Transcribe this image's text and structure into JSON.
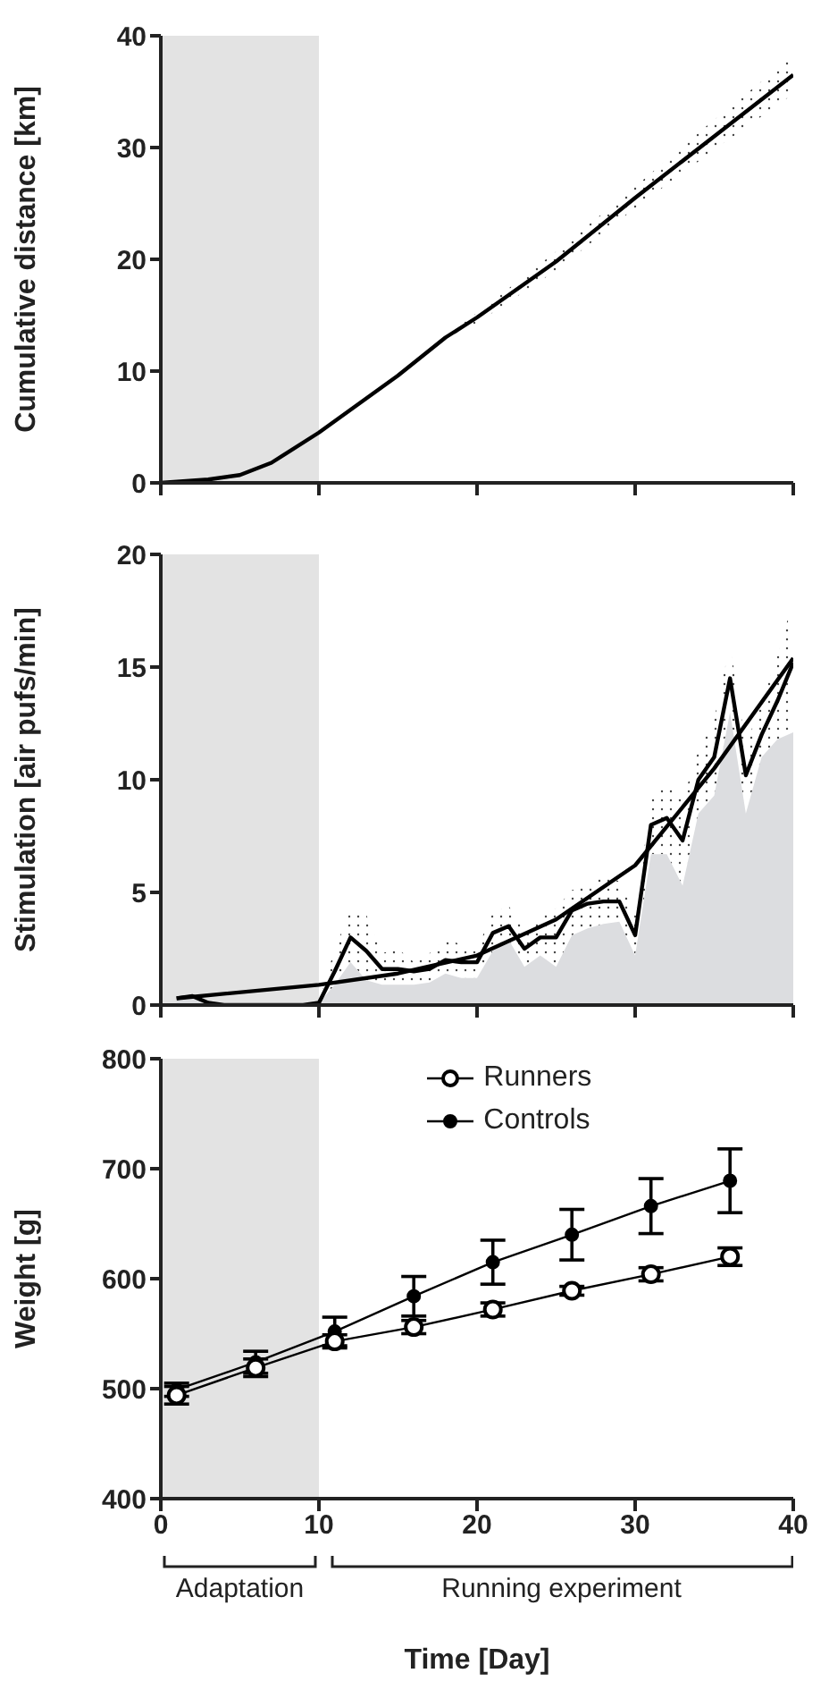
{
  "chart_data": [
    {
      "type": "line",
      "ylabel": "Cumulative distance [km]",
      "x": [
        0,
        3,
        5,
        7,
        10,
        15,
        18,
        20,
        25,
        30,
        35,
        40
      ],
      "series": [
        {
          "color": "#000000",
          "values": [
            0,
            0.3,
            0.7,
            1.8,
            4.5,
            9.6,
            13.0,
            14.8,
            19.8,
            25.5,
            31.0,
            36.5
          ],
          "lower": [
            0,
            0.3,
            0.7,
            1.8,
            4.5,
            9.6,
            12.8,
            14.3,
            19.0,
            24.6,
            29.8,
            34.8
          ],
          "upper": [
            0,
            0.3,
            0.7,
            1.8,
            4.5,
            9.6,
            13.2,
            15.2,
            20.7,
            26.5,
            32.5,
            38.2
          ]
        }
      ],
      "xlim": [
        0,
        40
      ],
      "xticks": [
        0,
        10,
        20,
        30,
        40
      ],
      "ylim": [
        0,
        40
      ],
      "yticks": [
        0,
        10,
        20,
        30,
        40
      ],
      "tick_labels": "y",
      "marker": "none",
      "bands": [
        {
          "axis": "x",
          "from": 0,
          "to": 10,
          "color": "#e3e3e3"
        }
      ]
    },
    {
      "type": "line",
      "ylabel": "Stimulation [air pufs/min]",
      "x": [
        1,
        2,
        3,
        4,
        5,
        6,
        7,
        8,
        9,
        10,
        11,
        12,
        13,
        14,
        15,
        16,
        17,
        18,
        19,
        20,
        21,
        22,
        23,
        24,
        25,
        26,
        27,
        28,
        29,
        30,
        31,
        32,
        33,
        34,
        35,
        36,
        37,
        38,
        39,
        40
      ],
      "series": [
        {
          "type": "area",
          "color": "#dcdde0",
          "values": [
            0.3,
            0.4,
            0.1,
            0,
            0,
            0,
            0,
            0,
            0,
            0.1,
            0.9,
            1.9,
            1.1,
            0.9,
            0.9,
            0.9,
            1.0,
            1.4,
            1.2,
            1.2,
            2.4,
            2.9,
            1.7,
            2.2,
            1.7,
            3.1,
            3.4,
            3.6,
            3.7,
            2.2,
            6.7,
            6.7,
            5.3,
            8.5,
            9.3,
            13.0,
            8.5,
            11.0,
            11.8,
            12.1
          ]
        },
        {
          "color": "#000000",
          "values": [
            0.3,
            0.4,
            0.1,
            0,
            0,
            0,
            0,
            0,
            0,
            0.1,
            1.5,
            3.0,
            2.4,
            1.6,
            1.6,
            1.5,
            1.6,
            2.0,
            1.9,
            1.9,
            3.2,
            3.5,
            2.5,
            3.0,
            3.0,
            4.2,
            4.5,
            4.6,
            4.6,
            3.1,
            8.0,
            8.3,
            7.3,
            10.0,
            11.0,
            14.5,
            10.2,
            12.0,
            13.5,
            15.2
          ],
          "lower": [
            0.3,
            0.4,
            0.1,
            0,
            0,
            0,
            0,
            0,
            0,
            0.1,
            0.9,
            1.9,
            1.1,
            0.9,
            0.9,
            0.9,
            1.0,
            1.4,
            1.2,
            1.2,
            2.4,
            2.9,
            1.7,
            2.2,
            1.7,
            3.1,
            3.4,
            3.6,
            3.7,
            2.2,
            6.7,
            6.7,
            5.3,
            8.5,
            9.3,
            13.0,
            8.5,
            11.0,
            11.8,
            12.1
          ],
          "upper": [
            0.3,
            0.4,
            0.1,
            0,
            0,
            0,
            0,
            0,
            0,
            0.1,
            2.5,
            4.2,
            4.0,
            2.3,
            2.5,
            1.9,
            2.3,
            2.9,
            2.7,
            2.5,
            4.1,
            4.4,
            3.3,
            3.9,
            4.3,
            5.1,
            5.3,
            5.7,
            5.5,
            4.0,
            9.1,
            9.9,
            9.1,
            11.3,
            12.7,
            16.0,
            11.5,
            13.5,
            15.5,
            18.0
          ]
        },
        {
          "type": "line",
          "color": "#000000",
          "x": [
            1,
            10,
            15,
            20,
            25,
            30,
            35,
            40
          ],
          "values": [
            0.3,
            0.9,
            1.4,
            2.2,
            3.8,
            6.2,
            10.5,
            15.4
          ]
        }
      ],
      "xlim": [
        0,
        40
      ],
      "xticks": [
        0,
        10,
        20,
        30,
        40
      ],
      "ylim": [
        0,
        20
      ],
      "yticks": [
        0,
        5,
        10,
        15,
        20
      ],
      "tick_labels": "y",
      "marker": "none",
      "bands": [
        {
          "axis": "x",
          "from": 0,
          "to": 10,
          "color": "#e3e3e3"
        }
      ]
    },
    {
      "type": "line",
      "ylabel": "Weight [g]",
      "xlabel": "Time [Day]",
      "x": [
        1,
        6,
        11,
        16,
        21,
        26,
        31,
        36
      ],
      "series": [
        {
          "name": "Runners",
          "color": "#000000",
          "values": [
            494,
            519,
            543,
            556,
            572,
            589,
            604,
            620
          ],
          "errors": [
            8,
            8,
            6,
            6,
            6,
            4,
            6,
            8
          ]
        },
        {
          "name": "Controls",
          "color": "#000000",
          "values": [
            499,
            524,
            552,
            584,
            615,
            640,
            666,
            689
          ],
          "errors": [
            6,
            10,
            13,
            18,
            20,
            23,
            25,
            29
          ]
        }
      ],
      "xlim": [
        0,
        40
      ],
      "xticks": [
        0,
        10,
        20,
        30,
        40
      ],
      "ylim": [
        400,
        800
      ],
      "yticks": [
        400,
        500,
        600,
        700,
        800
      ],
      "marker": "circle",
      "legend": "top right",
      "bands": [
        {
          "axis": "x",
          "from": 0,
          "to": 10,
          "color": "#e3e3e3"
        }
      ],
      "annotations": [
        "Adaptation",
        "Running experiment"
      ]
    }
  ]
}
